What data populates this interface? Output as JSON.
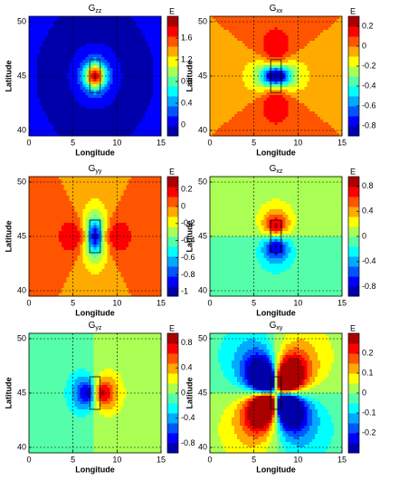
{
  "chart_data": [
    {
      "type": "contour",
      "title": {
        "base": "G",
        "sub": "zz"
      },
      "xlabel": "Longitude",
      "ylabel": "Latitude",
      "colorbar_label": "E",
      "xlim": [
        0,
        15
      ],
      "xticks": [
        0,
        5,
        10,
        15
      ],
      "ylim": [
        39.5,
        50.5
      ],
      "yticks": [
        40,
        45,
        50
      ],
      "zlim": [
        -0.2,
        2.0
      ],
      "zticks": [
        0,
        0.4,
        0.8,
        1.2,
        1.6
      ]
    },
    {
      "type": "contour",
      "title": {
        "base": "G",
        "sub": "xx"
      },
      "xlabel": "Longitude",
      "ylabel": "Latitude",
      "colorbar_label": "E",
      "xlim": [
        0,
        15
      ],
      "xticks": [
        0,
        5,
        10,
        15
      ],
      "ylim": [
        39.5,
        50.5
      ],
      "yticks": [
        40,
        45,
        50
      ],
      "zlim": [
        -0.9,
        0.3
      ],
      "zticks": [
        -0.8,
        -0.6,
        -0.4,
        -0.2,
        0,
        0.2
      ]
    },
    {
      "type": "contour",
      "title": {
        "base": "G",
        "sub": "yy"
      },
      "xlabel": "Longitude",
      "ylabel": "Latitude",
      "colorbar_label": "E",
      "xlim": [
        0,
        15
      ],
      "xticks": [
        0,
        5,
        10,
        15
      ],
      "ylim": [
        39.5,
        50.5
      ],
      "yticks": [
        40,
        45,
        50
      ],
      "zlim": [
        -1.05,
        0.35
      ],
      "zticks": [
        -1,
        -0.8,
        -0.6,
        -0.4,
        -0.2,
        0,
        0.2
      ]
    },
    {
      "type": "contour",
      "title": {
        "base": "G",
        "sub": "xz"
      },
      "xlabel": "Longitude",
      "ylabel": "Latitude",
      "colorbar_label": "E",
      "xlim": [
        0,
        15
      ],
      "xticks": [
        0,
        5,
        10,
        15
      ],
      "ylim": [
        39.5,
        50.5
      ],
      "yticks": [
        40,
        45,
        50
      ],
      "zlim": [
        -0.95,
        0.95
      ],
      "zticks": [
        -0.8,
        -0.4,
        0,
        0.4,
        0.8
      ]
    },
    {
      "type": "contour",
      "title": {
        "base": "G",
        "sub": "yz"
      },
      "xlabel": "Longitude",
      "ylabel": "Latitude",
      "colorbar_label": "E",
      "xlim": [
        0,
        15
      ],
      "xticks": [
        0,
        5,
        10,
        15
      ],
      "ylim": [
        39.5,
        50.5
      ],
      "yticks": [
        40,
        45,
        50
      ],
      "zlim": [
        -0.95,
        0.95
      ],
      "zticks": [
        -0.8,
        -0.4,
        0,
        0.4,
        0.8
      ]
    },
    {
      "type": "contour",
      "title": {
        "base": "G",
        "sub": "xy"
      },
      "xlabel": "Longitude",
      "ylabel": "Latitude",
      "colorbar_label": "E",
      "xlim": [
        0,
        15
      ],
      "xticks": [
        0,
        5,
        10,
        15
      ],
      "ylim": [
        39.5,
        50.5
      ],
      "yticks": [
        40,
        45,
        50
      ],
      "zlim": [
        -0.3,
        0.3
      ],
      "zticks": [
        -0.2,
        -0.1,
        0,
        0.1,
        0.2
      ]
    }
  ]
}
